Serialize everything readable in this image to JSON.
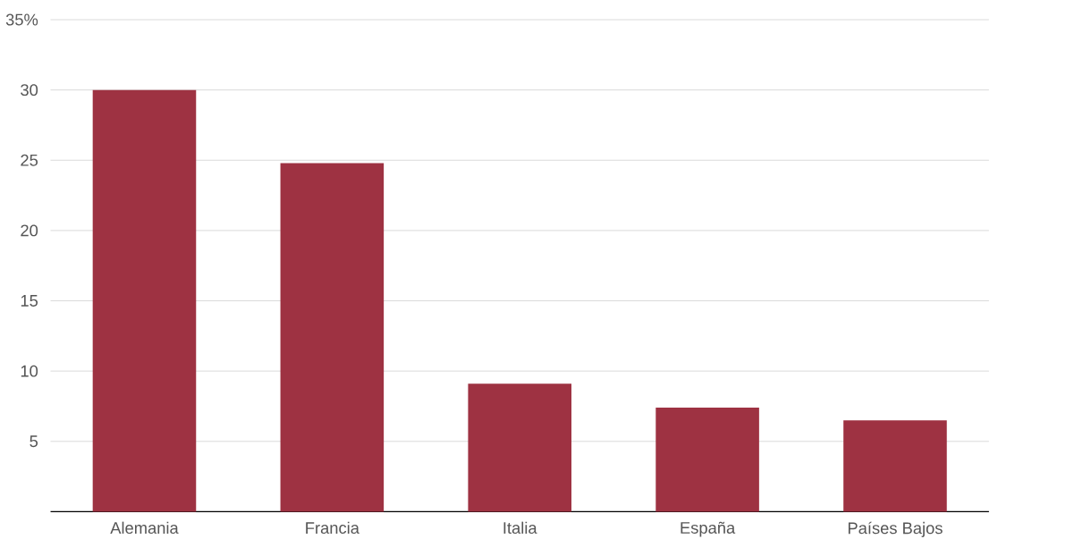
{
  "chart_data": {
    "type": "bar",
    "categories": [
      "Alemania",
      "Francia",
      "Italia",
      "España",
      "Países Bajos"
    ],
    "values": [
      30,
      24.8,
      9.1,
      7.4,
      6.5
    ],
    "color": "#9e3242",
    "ylim": [
      0,
      35
    ],
    "yticks": [
      5,
      10,
      15,
      20,
      25,
      30,
      {
        "value": 35,
        "label": "35%"
      }
    ],
    "grid": "y"
  }
}
